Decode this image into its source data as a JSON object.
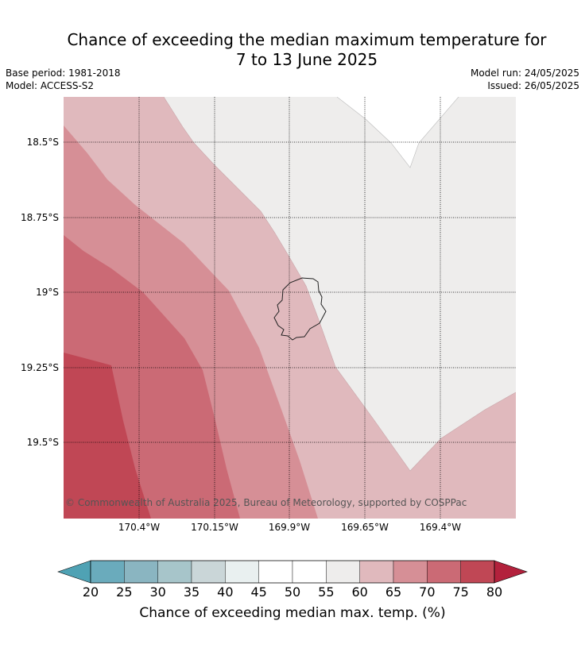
{
  "title_line1": "Chance of exceeding the median maximum temperature for",
  "title_line2": "7 to 13 June 2025",
  "base_period": "Base period: 1981-2018",
  "model": "Model: ACCESS-S2",
  "model_run": "Model run: 24/05/2025",
  "issued": "Issued: 26/05/2025",
  "latitudes": [
    "18.5°S",
    "18.75°S",
    "19°S",
    "19.25°S",
    "19.5°S"
  ],
  "longitudes": [
    "170.4°W",
    "170.15°W",
    "169.9°W",
    "169.65°W",
    "169.4°W"
  ],
  "copyright": "© Commonwealth of Australia 2025, Bureau of Meteorology, supported by COSPPac",
  "colorbar": {
    "ticks": [
      "20",
      "25",
      "30",
      "35",
      "40",
      "45",
      "50",
      "55",
      "60",
      "65",
      "70",
      "75",
      "80"
    ],
    "colors": [
      "#6aabbc",
      "#8ab5c1",
      "#a7c5ca",
      "#cad6d8",
      "#e9f0f0",
      "#ffffff",
      "#ffffff",
      "#eeedec",
      "#e0b9bd",
      "#d68f96",
      "#cb6a75",
      "#c04755"
    ],
    "under_color": "#4fa2b4",
    "over_color": "#b3213c",
    "label": "Chance of exceeding median max. temp. (%)"
  }
}
